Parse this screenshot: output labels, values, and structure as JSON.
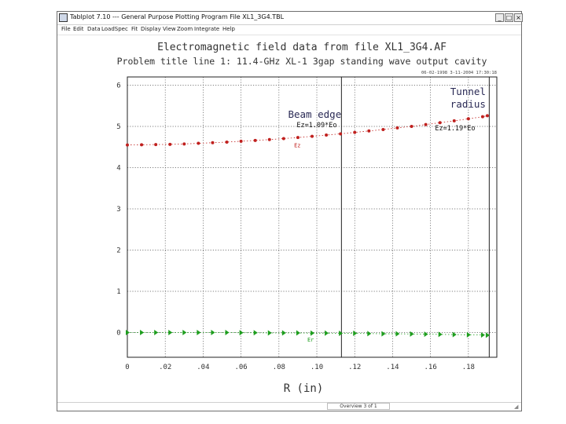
{
  "window": {
    "title": "Tablplot 7.10 --- General Purpose Plotting Program    File XL1_3G4.TBL",
    "buttons": {
      "minimize": "_",
      "maximize": "□",
      "close": "×"
    },
    "menu": [
      "File",
      "Edit",
      "Data",
      "LoadSpec",
      "Fit",
      "Display",
      "View",
      "Zoom",
      "Integrate",
      "Help"
    ],
    "status": "Overview 3 of 1",
    "icons": {
      "app": "app-icon",
      "grip": "resize-grip-icon"
    }
  },
  "chart_data": {
    "type": "scatter",
    "title": "Electromagnetic field data from file XL1_3G4.AF",
    "subtitle": "Problem title line 1: 11.4-GHz XL-1 3gap standing wave output cavity",
    "header_right": "06-02-1998   3-11-2004  17:30:18",
    "xlabel": "R (in)",
    "ylabel": "",
    "xlim": [
      0,
      0.195
    ],
    "ylim": [
      -0.6,
      6.2
    ],
    "x_ticks": [
      "0",
      ".02",
      ".04",
      ".06",
      ".08",
      ".10",
      ".12",
      ".14",
      ".16",
      ".18"
    ],
    "x_tick_values": [
      0,
      0.02,
      0.04,
      0.06,
      0.08,
      0.1,
      0.12,
      0.14,
      0.16,
      0.18
    ],
    "y_ticks": [
      "0",
      "1",
      "2",
      "3",
      "4",
      "5",
      "6"
    ],
    "y_tick_values": [
      0,
      1,
      2,
      3,
      4,
      5,
      6
    ],
    "grid": true,
    "series": [
      {
        "name": "Ez",
        "color": "#c0201e",
        "marker": "circle",
        "x": [
          0,
          0.0075,
          0.015,
          0.0225,
          0.03,
          0.0375,
          0.045,
          0.0525,
          0.06,
          0.0675,
          0.075,
          0.0825,
          0.09,
          0.0975,
          0.105,
          0.1125,
          0.12,
          0.1275,
          0.135,
          0.1425,
          0.15,
          0.1575,
          0.165,
          0.1725,
          0.18,
          0.1875,
          0.19
        ],
        "y": [
          4.55,
          4.555,
          4.56,
          4.565,
          4.575,
          4.59,
          4.605,
          4.62,
          4.64,
          4.66,
          4.68,
          4.705,
          4.73,
          4.76,
          4.79,
          4.82,
          4.855,
          4.89,
          4.925,
          4.965,
          5.0,
          5.045,
          5.09,
          5.135,
          5.185,
          5.235,
          5.26
        ]
      },
      {
        "name": "Er",
        "color": "#1e9e1e",
        "marker": "triangle-right",
        "x": [
          0,
          0.0075,
          0.015,
          0.0225,
          0.03,
          0.0375,
          0.045,
          0.0525,
          0.06,
          0.0675,
          0.075,
          0.0825,
          0.09,
          0.0975,
          0.105,
          0.1125,
          0.12,
          0.1275,
          0.135,
          0.1425,
          0.15,
          0.1575,
          0.165,
          0.1725,
          0.18,
          0.1875,
          0.19
        ],
        "y": [
          0,
          0,
          0,
          0,
          0,
          0,
          0,
          0,
          -0.005,
          -0.005,
          -0.01,
          -0.01,
          -0.01,
          -0.015,
          -0.015,
          -0.02,
          -0.02,
          -0.025,
          -0.03,
          -0.03,
          -0.035,
          -0.04,
          -0.045,
          -0.05,
          -0.055,
          -0.06,
          -0.065
        ]
      }
    ],
    "series_labels": [
      {
        "text": "Ez",
        "x": 0.088,
        "y": 4.5,
        "color": "#c0201e"
      },
      {
        "text": "Er",
        "x": 0.095,
        "y": -0.22,
        "color": "#1e9e1e"
      }
    ],
    "vlines": [
      {
        "x": 0.113,
        "label": "Beam  edge",
        "value_label": "Ez=1.09*Eo"
      },
      {
        "x": 0.191,
        "label_lines": [
          "Tunnel",
          "radius"
        ],
        "value_label": "Ez=1.19*Eo"
      }
    ]
  }
}
